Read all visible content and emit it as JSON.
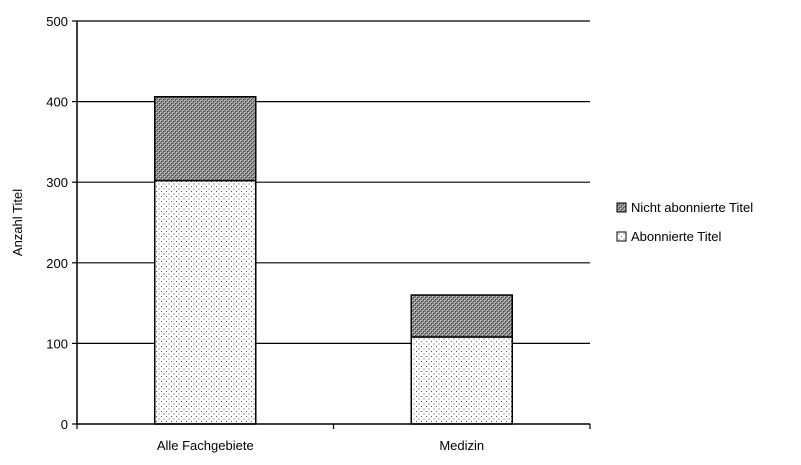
{
  "chart_data": {
    "type": "bar",
    "stacked": true,
    "title": "",
    "xlabel": "",
    "ylabel": "Anzahl Titel",
    "ylim": [
      0,
      500
    ],
    "yticks": [
      0,
      100,
      200,
      300,
      400,
      500
    ],
    "ytick_labels": [
      "0",
      "100",
      "200",
      "300",
      "400",
      "500"
    ],
    "categories": [
      "Alle Fachgebiete",
      "Medizin"
    ],
    "series": [
      {
        "name": "Abonnierte Titel",
        "values": [
          302,
          108
        ],
        "pattern": "dots",
        "color": "#ffffff"
      },
      {
        "name": "Nicht abonnierte Titel",
        "values": [
          104,
          52
        ],
        "pattern": "crosshatch",
        "color": "#8c8c8c"
      }
    ],
    "legend_order": [
      "Nicht abonnierte Titel",
      "Abonnierte Titel"
    ],
    "legend_position": "right",
    "grid": true
  }
}
